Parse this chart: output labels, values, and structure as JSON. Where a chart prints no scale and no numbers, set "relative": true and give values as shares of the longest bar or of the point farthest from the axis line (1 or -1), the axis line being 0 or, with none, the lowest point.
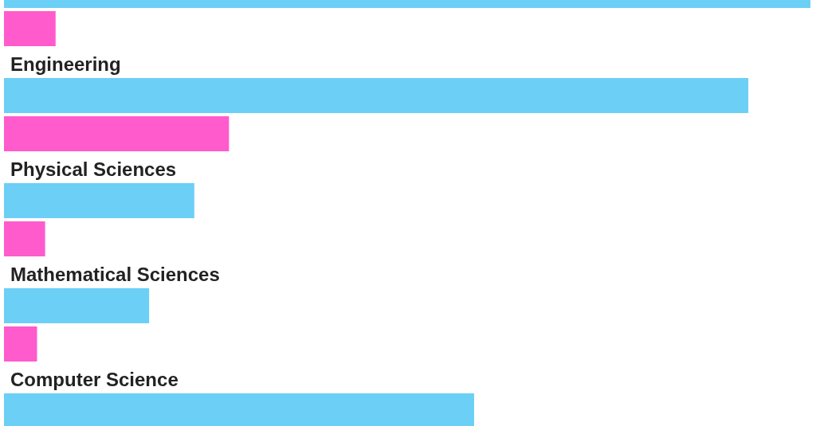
{
  "chart_data": {
    "type": "bar",
    "orientation": "horizontal",
    "relative": true,
    "categories": [
      null,
      "Engineering",
      "Physical Sciences",
      "Mathematical Sciences",
      "Computer Science"
    ],
    "series": [
      {
        "color": "#6ccff6",
        "values": [
          1,
          0.923,
          0.236,
          0.18,
          0.583
        ]
      },
      {
        "color": "#ff5bcc",
        "values": [
          0.064,
          0.279,
          0.051,
          0.041,
          null
        ]
      }
    ]
  }
}
